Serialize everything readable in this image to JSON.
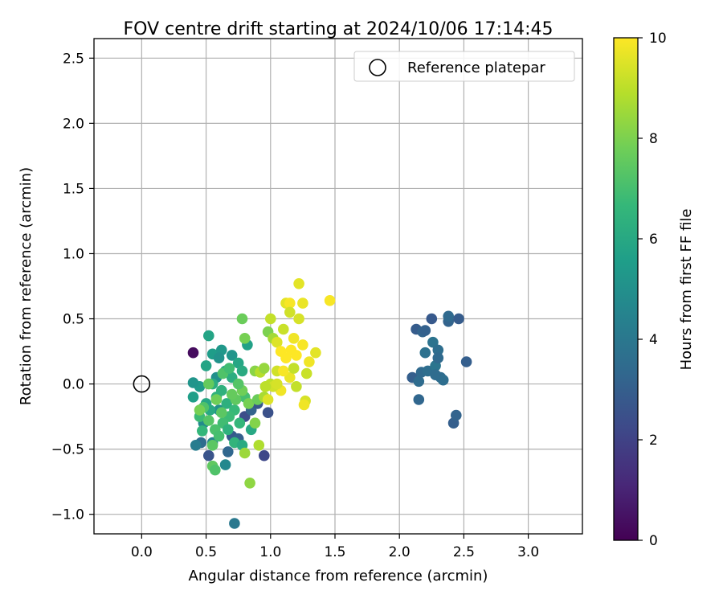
{
  "chart_data": {
    "type": "scatter",
    "title": "FOV centre drift starting at 2024/10/06 17:14:45",
    "xlabel": "Angular distance from reference (arcmin)",
    "ylabel": "Rotation from reference (arcmin)",
    "xlim": [
      -0.37,
      3.42
    ],
    "ylim": [
      -1.15,
      2.65
    ],
    "x_ticks": [
      0.0,
      0.5,
      1.0,
      1.5,
      2.0,
      2.5,
      3.0
    ],
    "x_tick_labels": [
      "0.0",
      "0.5",
      "1.0",
      "1.5",
      "2.0",
      "2.5",
      "3.0"
    ],
    "y_ticks": [
      -1.0,
      -0.5,
      0.0,
      0.5,
      1.0,
      1.5,
      2.0,
      2.5
    ],
    "y_tick_labels": [
      "−1.0",
      "−0.5",
      "0.0",
      "0.5",
      "1.0",
      "1.5",
      "2.0",
      "2.5"
    ],
    "grid": true,
    "legend": {
      "position": "top-right",
      "entries": [
        {
          "label": "Reference platepar",
          "marker": "open-circle"
        }
      ]
    },
    "reference_point": {
      "x": 0.0,
      "y": 0.0
    },
    "colorbar": {
      "label": "Hours from first FF file",
      "colormap": "viridis",
      "range": [
        0,
        10
      ],
      "ticks": [
        0,
        2,
        4,
        6,
        8,
        10
      ],
      "tick_labels": [
        "0",
        "2",
        "4",
        "6",
        "8",
        "10"
      ]
    },
    "series": [
      {
        "points": [
          [
            0.4,
            0.24,
            0.3
          ],
          [
            0.52,
            -0.55,
            2.6
          ],
          [
            0.7,
            -0.4,
            2.8
          ],
          [
            0.75,
            -0.42,
            3.0
          ],
          [
            0.8,
            -0.25,
            2.4
          ],
          [
            0.85,
            -0.2,
            3.2
          ],
          [
            0.9,
            -0.15,
            2.7
          ],
          [
            0.95,
            -0.55,
            2.2
          ],
          [
            0.98,
            -0.22,
            2.5
          ],
          [
            0.67,
            -0.52,
            3.3
          ],
          [
            0.72,
            -1.07,
            4.0
          ],
          [
            0.46,
            -0.45,
            3.5
          ],
          [
            0.42,
            -0.47,
            4.2
          ],
          [
            0.48,
            -0.3,
            4.8
          ],
          [
            0.55,
            -0.45,
            4.5
          ],
          [
            0.65,
            -0.62,
            4.7
          ],
          [
            0.6,
            -0.2,
            5.0
          ],
          [
            0.45,
            -0.02,
            5.4
          ],
          [
            0.4,
            0.01,
            5.2
          ],
          [
            0.4,
            -0.1,
            5.6
          ],
          [
            0.5,
            0.14,
            5.8
          ],
          [
            0.52,
            0.37,
            5.8
          ],
          [
            0.55,
            0.23,
            5.5
          ],
          [
            0.62,
            0.26,
            5.3
          ],
          [
            0.7,
            0.22,
            5.2
          ],
          [
            0.6,
            0.2,
            5.1
          ],
          [
            0.58,
            0.05,
            5.0
          ],
          [
            0.75,
            0.16,
            5.9
          ],
          [
            0.78,
            0.1,
            6.1
          ],
          [
            0.82,
            0.3,
            5.7
          ],
          [
            0.65,
            0.1,
            6.0
          ],
          [
            0.7,
            0.05,
            6.2
          ],
          [
            0.55,
            0.0,
            6.2
          ],
          [
            0.5,
            -0.15,
            5.9
          ],
          [
            0.53,
            -0.2,
            6.0
          ],
          [
            0.58,
            -0.1,
            6.5
          ],
          [
            0.62,
            -0.05,
            6.4
          ],
          [
            0.66,
            -0.15,
            6.3
          ],
          [
            0.72,
            -0.2,
            6.7
          ],
          [
            0.76,
            -0.3,
            6.6
          ],
          [
            0.8,
            -0.1,
            7.0
          ],
          [
            0.68,
            -0.25,
            6.8
          ],
          [
            0.63,
            -0.3,
            6.9
          ],
          [
            0.57,
            -0.35,
            7.1
          ],
          [
            0.47,
            -0.36,
            6.6
          ],
          [
            0.45,
            -0.25,
            6.8
          ],
          [
            0.48,
            -0.18,
            7.2
          ],
          [
            0.52,
            -0.28,
            7.3
          ],
          [
            0.6,
            -0.4,
            7.0
          ],
          [
            0.72,
            -0.45,
            6.5
          ],
          [
            0.78,
            -0.47,
            6.1
          ],
          [
            0.85,
            -0.35,
            6.0
          ],
          [
            0.55,
            -0.63,
            7.5
          ],
          [
            0.57,
            -0.66,
            7.2
          ],
          [
            0.55,
            -0.47,
            7.4
          ],
          [
            0.67,
            -0.35,
            6.4
          ],
          [
            0.73,
            -0.12,
            7.5
          ],
          [
            0.78,
            -0.05,
            7.8
          ],
          [
            0.83,
            -0.15,
            7.9
          ],
          [
            0.88,
            -0.3,
            8.1
          ],
          [
            0.9,
            -0.12,
            7.7
          ],
          [
            0.75,
            0.0,
            7.3
          ],
          [
            0.7,
            -0.08,
            7.6
          ],
          [
            0.63,
            0.08,
            7.2
          ],
          [
            0.68,
            0.12,
            6.9
          ],
          [
            0.78,
            0.5,
            7.7
          ],
          [
            0.8,
            0.35,
            7.9
          ],
          [
            0.88,
            0.1,
            8.2
          ],
          [
            0.62,
            -0.22,
            7.4
          ],
          [
            0.58,
            -0.12,
            7.8
          ],
          [
            0.52,
            0.0,
            7.6
          ],
          [
            0.45,
            -0.2,
            7.9
          ],
          [
            0.8,
            -0.53,
            8.5
          ],
          [
            0.84,
            -0.76,
            8.3
          ],
          [
            0.91,
            -0.47,
            8.8
          ],
          [
            0.95,
            -0.1,
            8.7
          ],
          [
            0.92,
            0.09,
            8.9
          ],
          [
            1.0,
            0.0,
            9.0
          ],
          [
            1.05,
            0.1,
            9.3
          ],
          [
            0.98,
            0.4,
            8.0
          ],
          [
            1.02,
            0.35,
            8.6
          ],
          [
            0.95,
            0.12,
            8.4
          ],
          [
            1.0,
            0.5,
            9.1
          ],
          [
            1.05,
            0.32,
            9.5
          ],
          [
            1.1,
            0.42,
            9.2
          ],
          [
            1.12,
            0.62,
            9.6
          ],
          [
            1.15,
            0.62,
            9.9
          ],
          [
            1.22,
            0.77,
            9.6
          ],
          [
            1.25,
            0.62,
            9.7
          ],
          [
            1.22,
            0.5,
            9.4
          ],
          [
            1.18,
            0.35,
            9.8
          ],
          [
            1.25,
            0.3,
            9.9
          ],
          [
            1.3,
            0.17,
            9.8
          ],
          [
            1.35,
            0.24,
            9.6
          ],
          [
            1.28,
            0.08,
            9.2
          ],
          [
            1.27,
            -0.13,
            9.4
          ],
          [
            1.26,
            -0.16,
            9.8
          ],
          [
            1.2,
            -0.02,
            9.1
          ],
          [
            1.15,
            0.05,
            9.7
          ],
          [
            1.1,
            0.1,
            9.9
          ],
          [
            1.08,
            0.25,
            10.0
          ],
          [
            1.12,
            0.2,
            10.0
          ],
          [
            1.16,
            0.26,
            10.0
          ],
          [
            1.2,
            0.22,
            10.0
          ],
          [
            1.08,
            -0.05,
            9.8
          ],
          [
            1.02,
            -0.02,
            9.3
          ],
          [
            0.96,
            -0.02,
            9.0
          ],
          [
            0.98,
            -0.12,
            9.5
          ],
          [
            1.05,
            0.0,
            9.4
          ],
          [
            1.15,
            0.55,
            9.3
          ],
          [
            1.18,
            0.12,
            9.1
          ],
          [
            1.46,
            0.64,
            9.9
          ],
          [
            2.1,
            0.05,
            3.0
          ],
          [
            2.13,
            0.42,
            2.9
          ],
          [
            2.15,
            0.02,
            3.5
          ],
          [
            2.15,
            -0.12,
            3.3
          ],
          [
            2.17,
            0.09,
            3.4
          ],
          [
            2.18,
            0.4,
            3.2
          ],
          [
            2.2,
            0.41,
            3.1
          ],
          [
            2.2,
            0.24,
            3.7
          ],
          [
            2.22,
            0.1,
            3.6
          ],
          [
            2.25,
            0.5,
            2.8
          ],
          [
            2.26,
            0.32,
            3.8
          ],
          [
            2.28,
            0.14,
            3.9
          ],
          [
            2.3,
            0.26,
            3.6
          ],
          [
            2.3,
            0.2,
            3.4
          ],
          [
            2.32,
            0.05,
            3.5
          ],
          [
            2.34,
            0.03,
            3.6
          ],
          [
            2.38,
            0.48,
            3.2
          ],
          [
            2.38,
            0.52,
            3.4
          ],
          [
            2.42,
            -0.3,
            3.0
          ],
          [
            2.44,
            -0.24,
            3.2
          ],
          [
            2.46,
            0.5,
            2.9
          ],
          [
            2.52,
            0.17,
            3.0
          ],
          [
            2.28,
            0.07,
            3.5
          ]
        ]
      }
    ]
  }
}
